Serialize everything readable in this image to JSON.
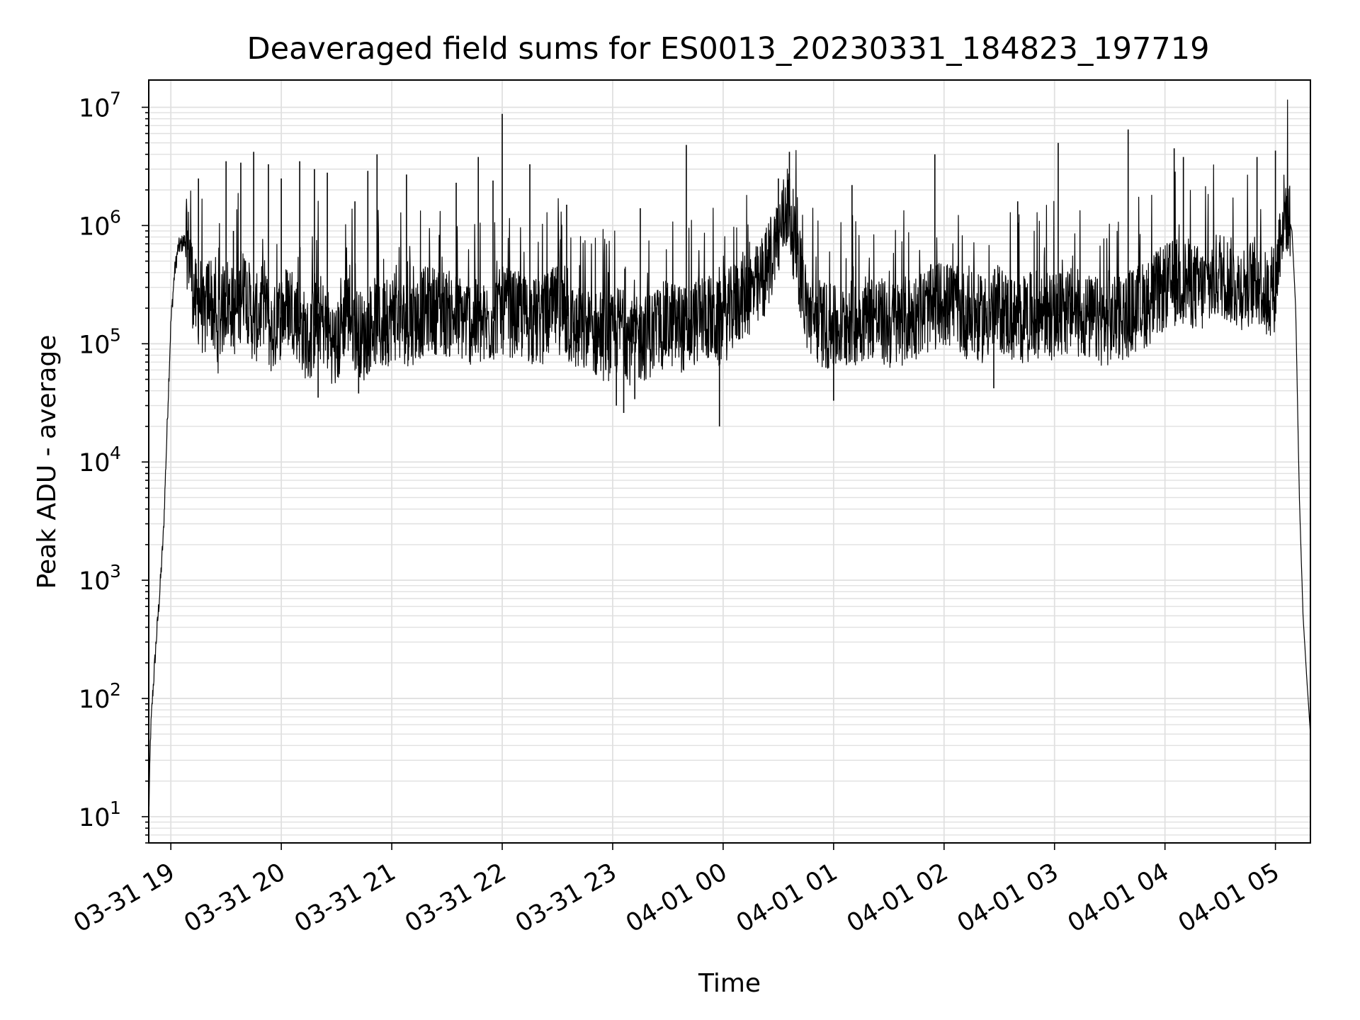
{
  "chart_data": {
    "type": "line",
    "title": "Deaveraged field sums for ES0013_20230331_184823_197719",
    "xlabel": "Time",
    "ylabel": "Peak ADU - average",
    "yscale": "log",
    "ylim": [
      6,
      17000000
    ],
    "xlim": [
      "2023-03-31 18:48",
      "2023-04-01 05:19"
    ],
    "grid": true,
    "x_tick_values": [
      "2023-03-31 19:00",
      "2023-03-31 20:00",
      "2023-03-31 21:00",
      "2023-03-31 22:00",
      "2023-03-31 23:00",
      "2023-04-01 00:00",
      "2023-04-01 01:00",
      "2023-04-01 02:00",
      "2023-04-01 03:00",
      "2023-04-01 04:00",
      "2023-04-01 05:00"
    ],
    "x_tick_labels": [
      "03-31 19",
      "03-31 20",
      "03-31 21",
      "03-31 22",
      "03-31 23",
      "04-01 00",
      "04-01 01",
      "04-01 02",
      "04-01 03",
      "04-01 04",
      "04-01 05"
    ],
    "y_ticks": [
      {
        "value": 10,
        "base": "10",
        "exp": "1"
      },
      {
        "value": 100,
        "base": "10",
        "exp": "2"
      },
      {
        "value": 1000,
        "base": "10",
        "exp": "3"
      },
      {
        "value": 10000,
        "base": "10",
        "exp": "4"
      },
      {
        "value": 100000,
        "base": "10",
        "exp": "5"
      },
      {
        "value": 1000000,
        "base": "10",
        "exp": "6"
      },
      {
        "value": 10000000,
        "base": "10",
        "exp": "7"
      }
    ],
    "line_color": "#000000",
    "grid_color": "#e0e0e0",
    "series": [
      {
        "x": [
          "2023-03-31 18:48",
          "2023-03-31 18:49",
          "2023-03-31 18:50",
          "2023-03-31 18:52",
          "2023-03-31 18:54",
          "2023-03-31 18:56",
          "2023-03-31 18:58",
          "2023-03-31 19:00",
          "2023-03-31 19:02",
          "2023-03-31 19:04",
          "2023-03-31 19:06",
          "2023-03-31 19:08",
          "2023-03-31 19:10",
          "2023-03-31 19:12",
          "2023-03-31 19:14",
          "2023-03-31 19:16",
          "2023-03-31 19:18",
          "2023-03-31 19:21",
          "2023-03-31 19:25",
          "2023-03-31 19:30",
          "2023-03-31 19:35",
          "2023-03-31 19:40",
          "2023-03-31 19:45",
          "2023-03-31 19:50",
          "2023-03-31 19:55",
          "2023-03-31 20:00",
          "2023-03-31 20:05",
          "2023-03-31 20:10",
          "2023-03-31 20:15",
          "2023-03-31 20:20",
          "2023-03-31 20:25",
          "2023-03-31 20:30",
          "2023-03-31 20:35",
          "2023-03-31 20:40",
          "2023-03-31 20:45",
          "2023-03-31 20:50",
          "2023-03-31 20:55",
          "2023-03-31 21:00",
          "2023-03-31 21:10",
          "2023-03-31 21:20",
          "2023-03-31 21:30",
          "2023-03-31 21:40",
          "2023-03-31 21:50",
          "2023-03-31 22:00",
          "2023-03-31 22:10",
          "2023-03-31 22:20",
          "2023-03-31 22:30",
          "2023-03-31 22:40",
          "2023-03-31 22:50",
          "2023-03-31 23:00",
          "2023-03-31 23:05",
          "2023-03-31 23:10",
          "2023-03-31 23:20",
          "2023-03-31 23:30",
          "2023-03-31 23:40",
          "2023-03-31 23:50",
          "2023-03-31 23:58",
          "2023-04-01 00:05",
          "2023-04-01 00:10",
          "2023-04-01 00:20",
          "2023-04-01 00:30",
          "2023-04-01 00:35",
          "2023-04-01 00:40",
          "2023-04-01 00:45",
          "2023-04-01 00:50",
          "2023-04-01 01:00",
          "2023-04-01 01:10",
          "2023-04-01 01:20",
          "2023-04-01 01:30",
          "2023-04-01 01:40",
          "2023-04-01 01:50",
          "2023-04-01 02:00",
          "2023-04-01 02:10",
          "2023-04-01 02:20",
          "2023-04-01 02:30",
          "2023-04-01 02:40",
          "2023-04-01 02:50",
          "2023-04-01 03:00",
          "2023-04-01 03:10",
          "2023-04-01 03:20",
          "2023-04-01 03:30",
          "2023-04-01 03:40",
          "2023-04-01 03:50",
          "2023-04-01 04:00",
          "2023-04-01 04:10",
          "2023-04-01 04:20",
          "2023-04-01 04:30",
          "2023-04-01 04:40",
          "2023-04-01 04:50",
          "2023-04-01 04:55",
          "2023-04-01 05:00",
          "2023-04-01 05:03",
          "2023-04-01 05:06",
          "2023-04-01 05:09",
          "2023-04-01 05:11",
          "2023-04-01 05:13",
          "2023-04-01 05:15",
          "2023-04-01 05:17",
          "2023-04-01 05:19"
        ],
        "values": [
          10,
          50,
          100,
          300,
          800,
          2500,
          20000,
          150000,
          400000,
          650000,
          700000,
          750000,
          600000,
          300000,
          200000,
          250000,
          150000,
          300000,
          120000,
          250000,
          180000,
          300000,
          150000,
          200000,
          120000,
          180000,
          220000,
          150000,
          100000,
          180000,
          130000,
          90000,
          200000,
          140000,
          110000,
          160000,
          130000,
          170000,
          150000,
          200000,
          180000,
          160000,
          140000,
          190000,
          170000,
          150000,
          200000,
          130000,
          120000,
          110000,
          150000,
          100000,
          120000,
          150000,
          130000,
          180000,
          140000,
          200000,
          250000,
          300000,
          800000,
          1500000,
          600000,
          200000,
          160000,
          130000,
          150000,
          180000,
          140000,
          160000,
          190000,
          220000,
          180000,
          160000,
          200000,
          150000,
          180000,
          170000,
          190000,
          160000,
          150000,
          180000,
          220000,
          300000,
          350000,
          280000,
          400000,
          300000,
          350000,
          250000,
          300000,
          1000000,
          1400000,
          900000,
          200000,
          5000,
          500,
          150,
          50
        ]
      }
    ],
    "spikes": [
      {
        "x": "2023-03-31 19:15",
        "y": 2500000
      },
      {
        "x": "2023-03-31 19:30",
        "y": 3500000
      },
      {
        "x": "2023-03-31 19:34",
        "y": 900000
      },
      {
        "x": "2023-03-31 19:38",
        "y": 3400000
      },
      {
        "x": "2023-03-31 19:45",
        "y": 4200000
      },
      {
        "x": "2023-03-31 19:53",
        "y": 3300000
      },
      {
        "x": "2023-03-31 20:00",
        "y": 2500000
      },
      {
        "x": "2023-03-31 20:10",
        "y": 3500000
      },
      {
        "x": "2023-03-31 20:18",
        "y": 3000000
      },
      {
        "x": "2023-03-31 20:25",
        "y": 2800000
      },
      {
        "x": "2023-03-31 20:40",
        "y": 1600000
      },
      {
        "x": "2023-03-31 20:47",
        "y": 2900000
      },
      {
        "x": "2023-03-31 20:52",
        "y": 4000000
      },
      {
        "x": "2023-03-31 21:08",
        "y": 2700000
      },
      {
        "x": "2023-03-31 21:35",
        "y": 2300000
      },
      {
        "x": "2023-03-31 21:47",
        "y": 3800000
      },
      {
        "x": "2023-03-31 21:55",
        "y": 2400000
      },
      {
        "x": "2023-03-31 22:00",
        "y": 8800000
      },
      {
        "x": "2023-03-31 22:15",
        "y": 3300000
      },
      {
        "x": "2023-03-31 22:35",
        "y": 1500000
      },
      {
        "x": "2023-03-31 23:15",
        "y": 1400000
      },
      {
        "x": "2023-03-31 23:40",
        "y": 4800000
      },
      {
        "x": "2023-04-01 00:30",
        "y": 2500000
      },
      {
        "x": "2023-04-01 00:36",
        "y": 4200000
      },
      {
        "x": "2023-04-01 01:10",
        "y": 2200000
      },
      {
        "x": "2023-04-01 01:55",
        "y": 4000000
      },
      {
        "x": "2023-04-01 02:40",
        "y": 1600000
      },
      {
        "x": "2023-04-01 03:02",
        "y": 5000000
      },
      {
        "x": "2023-04-01 03:40",
        "y": 6500000
      },
      {
        "x": "2023-04-01 04:05",
        "y": 4500000
      },
      {
        "x": "2023-04-01 04:10",
        "y": 3800000
      },
      {
        "x": "2023-04-01 04:50",
        "y": 3800000
      },
      {
        "x": "2023-04-01 05:00",
        "y": 4300000
      }
    ],
    "dips": [
      {
        "x": "2023-03-31 20:20",
        "y": 35000
      },
      {
        "x": "2023-03-31 20:42",
        "y": 38000
      },
      {
        "x": "2023-03-31 23:02",
        "y": 30000
      },
      {
        "x": "2023-03-31 23:06",
        "y": 26000
      },
      {
        "x": "2023-03-31 23:12",
        "y": 34000
      },
      {
        "x": "2023-03-31 23:58",
        "y": 20000
      },
      {
        "x": "2023-04-01 01:00",
        "y": 33000
      },
      {
        "x": "2023-04-01 02:27",
        "y": 42000
      }
    ]
  }
}
